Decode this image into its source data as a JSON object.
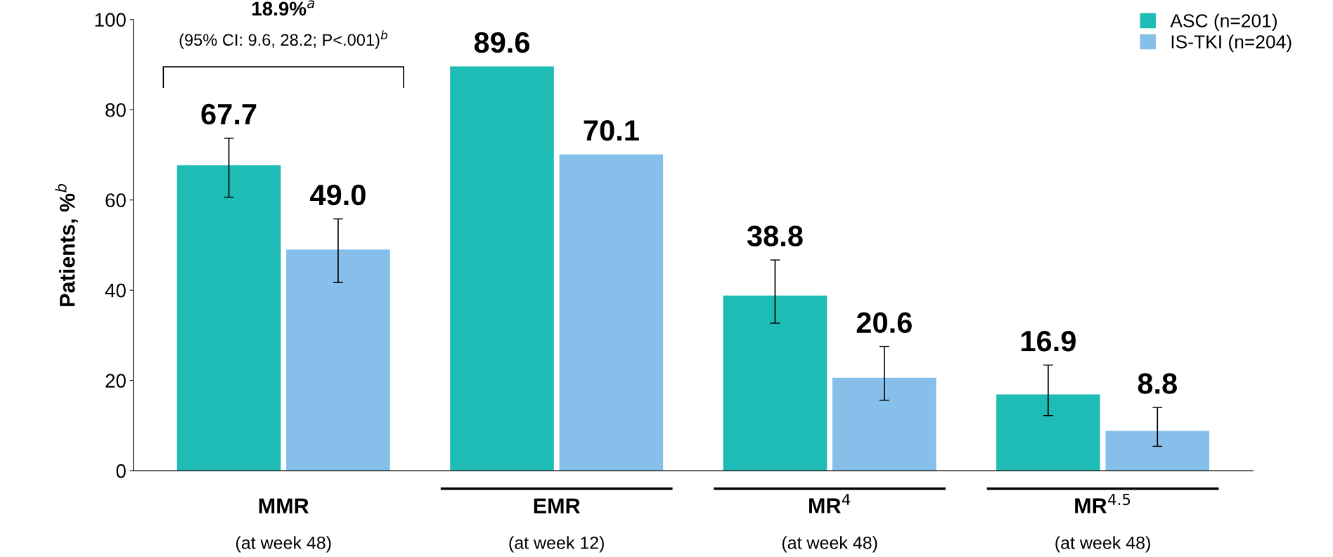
{
  "chart_data": {
    "type": "bar",
    "ylabel": "Patients, %$^{b}$",
    "categories": [
      "MMR\n(at week 48)",
      "EMR\n(at week 12)",
      "MR$^{4}$\n(at week 48)",
      "MR$^{4.5}$\n(at week 48)"
    ],
    "series": [
      {
        "name": "ASC (n=201)",
        "color": "#1ebcb5",
        "values": [
          67.7,
          89.6,
          38.8,
          16.9
        ],
        "value_labels": [
          "67.7",
          "89.6",
          "38.8",
          "16.9"
        ],
        "errors": [
          [
            60.6,
            73.7
          ],
          null,
          [
            32.7,
            46.7
          ],
          [
            12.2,
            23.4
          ]
        ]
      },
      {
        "name": "IS-TKI (n=204)",
        "color": "#86bfe9",
        "values": [
          49.0,
          70.1,
          20.6,
          8.8
        ],
        "value_labels": [
          "49.0",
          "70.1",
          "20.6",
          "8.8"
        ],
        "errors": [
          [
            41.7,
            55.8
          ],
          null,
          [
            15.6,
            27.5
          ],
          [
            5.4,
            14.0
          ]
        ]
      }
    ],
    "ylim": [
      0,
      100
    ],
    "yticks": [
      0,
      20,
      40,
      60,
      80,
      100
    ],
    "grid": false,
    "legend": "top right",
    "annotations": [
      "18.9%$^{a}$",
      "(95% CI: 9.6, 28.2; P<.001)$^{b}$"
    ]
  }
}
